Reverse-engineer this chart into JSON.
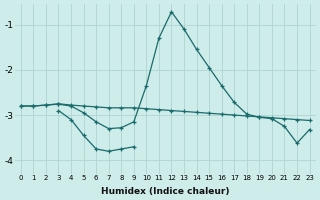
{
  "xlabel": "Humidex (Indice chaleur)",
  "background_color": "#cdecea",
  "grid_color": "#aed4d2",
  "line_color": "#1a6b6b",
  "xlim": [
    -0.5,
    23.5
  ],
  "ylim": [
    -4.3,
    -0.55
  ],
  "xticks": [
    0,
    1,
    2,
    3,
    4,
    5,
    6,
    7,
    8,
    9,
    10,
    11,
    12,
    13,
    14,
    15,
    16,
    17,
    18,
    19,
    20,
    21,
    22,
    23
  ],
  "yticks": [
    -4,
    -3,
    -2,
    -1
  ],
  "line1_x": [
    0,
    1,
    2,
    3,
    4,
    5,
    6,
    7,
    8,
    9,
    10,
    11,
    12,
    13,
    14,
    15,
    16,
    17,
    18,
    19,
    20,
    21,
    22,
    23
  ],
  "line1_y": [
    -2.8,
    -2.8,
    -2.78,
    -2.75,
    -2.78,
    -2.8,
    -2.82,
    -2.84,
    -2.84,
    -2.84,
    -2.86,
    -2.88,
    -2.9,
    -2.92,
    -2.94,
    -2.96,
    -2.98,
    -3.0,
    -3.02,
    -3.04,
    -3.06,
    -3.08,
    -3.1,
    -3.12
  ],
  "line2_x": [
    0,
    1,
    2,
    3,
    4,
    5,
    6,
    7,
    8,
    9,
    10,
    11,
    12,
    13,
    14,
    15,
    16,
    17,
    18,
    19,
    20,
    21,
    22,
    23
  ],
  "line2_y": [
    -2.8,
    -2.8,
    -2.78,
    -2.76,
    -2.8,
    -2.95,
    -3.15,
    -3.3,
    -3.28,
    -3.15,
    -2.35,
    -1.3,
    -0.72,
    -1.1,
    -1.55,
    -1.95,
    -2.35,
    -2.72,
    -2.98,
    -3.05,
    -3.08,
    -3.25,
    -3.62,
    -3.32
  ],
  "line3_x": [
    3,
    4,
    5,
    6,
    7,
    8,
    9
  ],
  "line3_y": [
    -2.9,
    -3.1,
    -3.45,
    -3.75,
    -3.8,
    -3.75,
    -3.7
  ]
}
